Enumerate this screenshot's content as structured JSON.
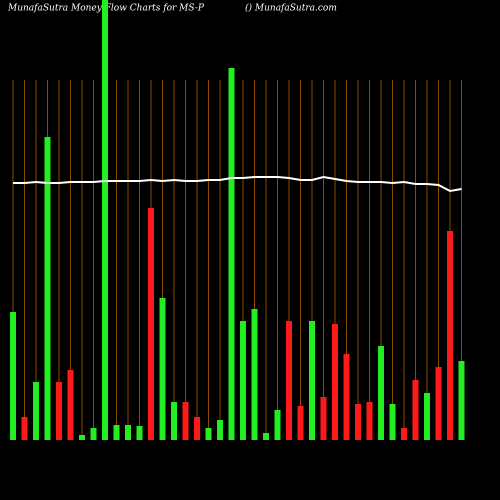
{
  "chart_data": {
    "type": "bar",
    "title": "MunafaSutra  Money Flow  Charts for MS-P",
    "subtitle": "() MunafaSutra.com",
    "categories": [
      null,
      null,
      null,
      null,
      null,
      null,
      null,
      null,
      null,
      null,
      null,
      null,
      null,
      null,
      null,
      null,
      null,
      null,
      null,
      null,
      null,
      null,
      null,
      null,
      null,
      null,
      null,
      null,
      null,
      null,
      null,
      null,
      null,
      null,
      null,
      null,
      null,
      null,
      null,
      null
    ],
    "values": [
      128,
      23,
      58,
      303,
      58,
      70,
      5,
      12,
      440,
      15,
      15,
      14,
      232,
      142,
      38,
      38,
      23,
      12,
      20,
      372,
      119,
      131,
      7,
      30,
      119,
      34,
      119,
      43,
      116,
      86,
      36,
      38,
      94,
      36,
      12,
      60,
      47,
      73,
      209,
      79
    ],
    "colors": [
      "#22ee22",
      "#ff1a1a",
      "#22ee22",
      "#22ee22",
      "#ff1a1a",
      "#ff1a1a",
      "#22ee22",
      "#22ee22",
      "#22ee22",
      "#22ee22",
      "#22ee22",
      "#22ee22",
      "#ff1a1a",
      "#22ee22",
      "#22ee22",
      "#ff1a1a",
      "#ff1a1a",
      "#22ee22",
      "#22ee22",
      "#22ee22",
      "#22ee22",
      "#22ee22",
      "#22ee22",
      "#22ee22",
      "#ff1a1a",
      "#ff1a1a",
      "#22ee22",
      "#ff1a1a",
      "#ff1a1a",
      "#ff1a1a",
      "#ff1a1a",
      "#ff1a1a",
      "#22ee22",
      "#22ee22",
      "#ff1a1a",
      "#ff1a1a",
      "#22ee22",
      "#ff1a1a",
      "#ff1a1a",
      "#22ee22"
    ],
    "line": {
      "color": "#ffffff",
      "values": [
        257,
        257,
        258,
        257,
        257,
        258,
        258,
        258,
        259,
        259,
        259,
        259,
        260,
        259,
        260,
        259,
        259,
        260,
        260,
        262,
        262,
        263,
        263,
        263,
        262,
        260,
        260,
        263,
        261,
        259,
        258,
        258,
        258,
        257,
        258,
        256,
        256,
        255,
        249,
        251
      ]
    },
    "grid_color": "#8a4a00",
    "ylim": [
      0,
      440
    ]
  }
}
